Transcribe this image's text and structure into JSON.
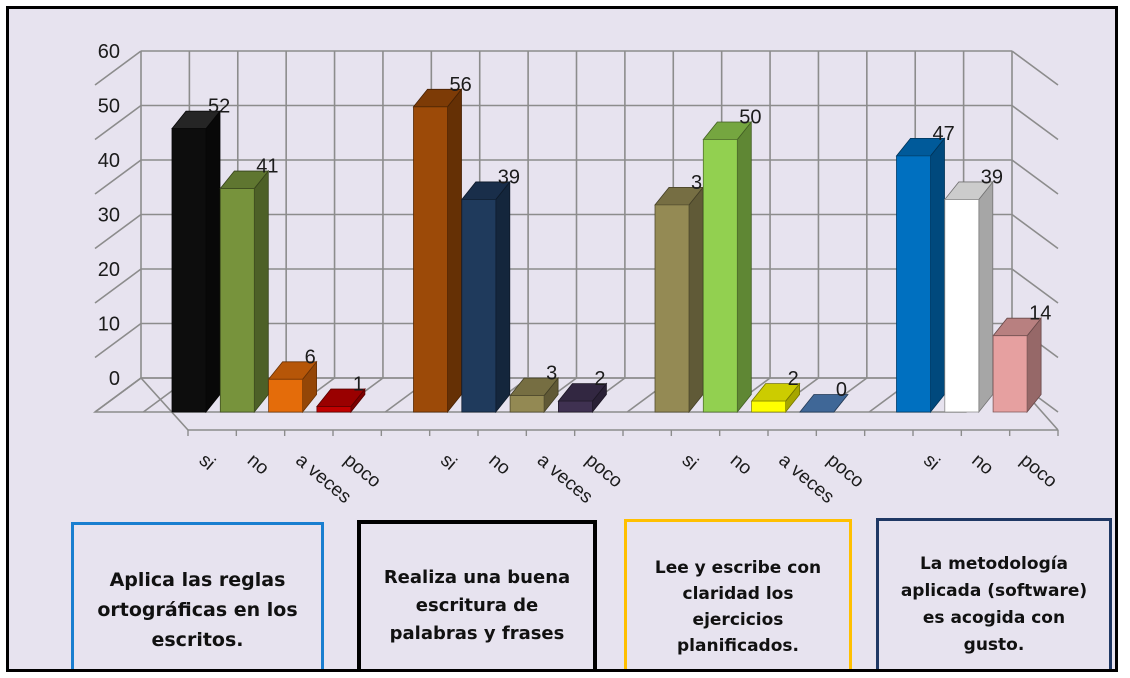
{
  "chart_data": {
    "type": "bar",
    "ylim": [
      0,
      60
    ],
    "yticks": [
      "0",
      "10",
      "20",
      "30",
      "40",
      "50",
      "60"
    ],
    "groups": [
      {
        "description": "Aplica las reglas\nortográficas en los\nescritos.",
        "border": "#1a7fd0",
        "bars": [
          {
            "category": "si",
            "value": 52,
            "label": "52",
            "color": "#0d0d0d"
          },
          {
            "category": "no",
            "value": 41,
            "label": "41",
            "color": "#77933c"
          },
          {
            "category": "a veces",
            "value": 6,
            "label": "6",
            "color": "#e46c0a"
          },
          {
            "category": "poco",
            "value": 1,
            "label": "1",
            "color": "#c00000"
          }
        ]
      },
      {
        "description": "Realiza una buena\nescritura de\npalabras y frases",
        "border": "#000000",
        "bars": [
          {
            "category": "si",
            "value": 56,
            "label": "56",
            "color": "#9c4a08"
          },
          {
            "category": "no",
            "value": 39,
            "label": "39",
            "color": "#1f3a5c"
          },
          {
            "category": "a veces",
            "value": 3,
            "label": "3",
            "color": "#938953"
          },
          {
            "category": "poco",
            "value": 2,
            "label": "2",
            "color": "#3f3151"
          }
        ]
      },
      {
        "description": "Lee y escribe con\nclaridad los\nejercicios\nplanificados.",
        "border": "#ffc000",
        "bars": [
          {
            "category": "si",
            "value": 38,
            "label": "38",
            "color": "#948a54"
          },
          {
            "category": "no",
            "value": 50,
            "label": "50",
            "color": "#92d050"
          },
          {
            "category": "a veces",
            "value": 2,
            "label": "2",
            "color": "#ffff00"
          },
          {
            "category": "poco",
            "value": 0,
            "label": "0",
            "color": "#4f81bd"
          }
        ]
      },
      {
        "description": "La metodología\naplicada (software)\nes acogida con\ngusto.",
        "border": "#1f3864",
        "bars": [
          {
            "category": "si",
            "value": 47,
            "label": "47",
            "color": "#0070c0"
          },
          {
            "category": "no",
            "value": 39,
            "label": "39",
            "color": "#ffffff"
          },
          {
            "category": "poco",
            "value": 14,
            "label": "14",
            "color": "#e6a0a0"
          }
        ]
      }
    ]
  }
}
